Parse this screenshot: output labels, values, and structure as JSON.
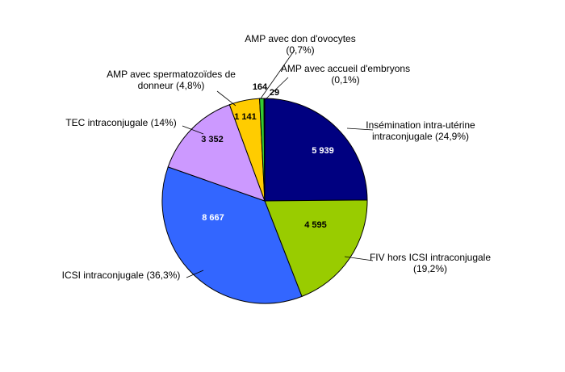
{
  "chart_data": {
    "type": "pie",
    "slices": [
      {
        "key": "insemination",
        "value": 5939,
        "value_label": "5 939",
        "label_lines": [
          "Insémination intra-utérine",
          "intraconjugale (24,9%)"
        ],
        "color": "#000080",
        "value_color": "#ffffff"
      },
      {
        "key": "fiv",
        "value": 4595,
        "value_label": "4 595",
        "label_lines": [
          "FIV hors ICSI intraconjugale",
          "(19,2%)"
        ],
        "color": "#99cc00",
        "value_color": "#000000"
      },
      {
        "key": "icsi",
        "value": 8667,
        "value_label": "8  667",
        "label_lines": [
          "ICSI intraconjugale (36,3%)"
        ],
        "color": "#3366ff",
        "value_color": "#ffffff"
      },
      {
        "key": "tec",
        "value": 3352,
        "value_label": "3 352",
        "label_lines": [
          "TEC intraconjugale (14%)"
        ],
        "color": "#cc99ff",
        "value_color": "#000000"
      },
      {
        "key": "spermatozoides",
        "value": 1141,
        "value_label": "1 141",
        "label_lines": [
          "AMP  avec spermatozoïdes de",
          "donneur (4,8%)"
        ],
        "color": "#ffcc00",
        "value_color": "#000000"
      },
      {
        "key": "ovocytes",
        "value": 164,
        "value_label": "164",
        "label_lines": [
          "AMP  avec don d'ovocytes",
          "(0,7%)"
        ],
        "color": "#33cc33",
        "value_color": "#000000"
      },
      {
        "key": "embryons",
        "value": 29,
        "value_label": "29",
        "label_lines": [
          "AMP  avec accueil d'embryons",
          "(0,1%)"
        ],
        "color": "#ff0000",
        "value_color": "#000000"
      }
    ]
  }
}
